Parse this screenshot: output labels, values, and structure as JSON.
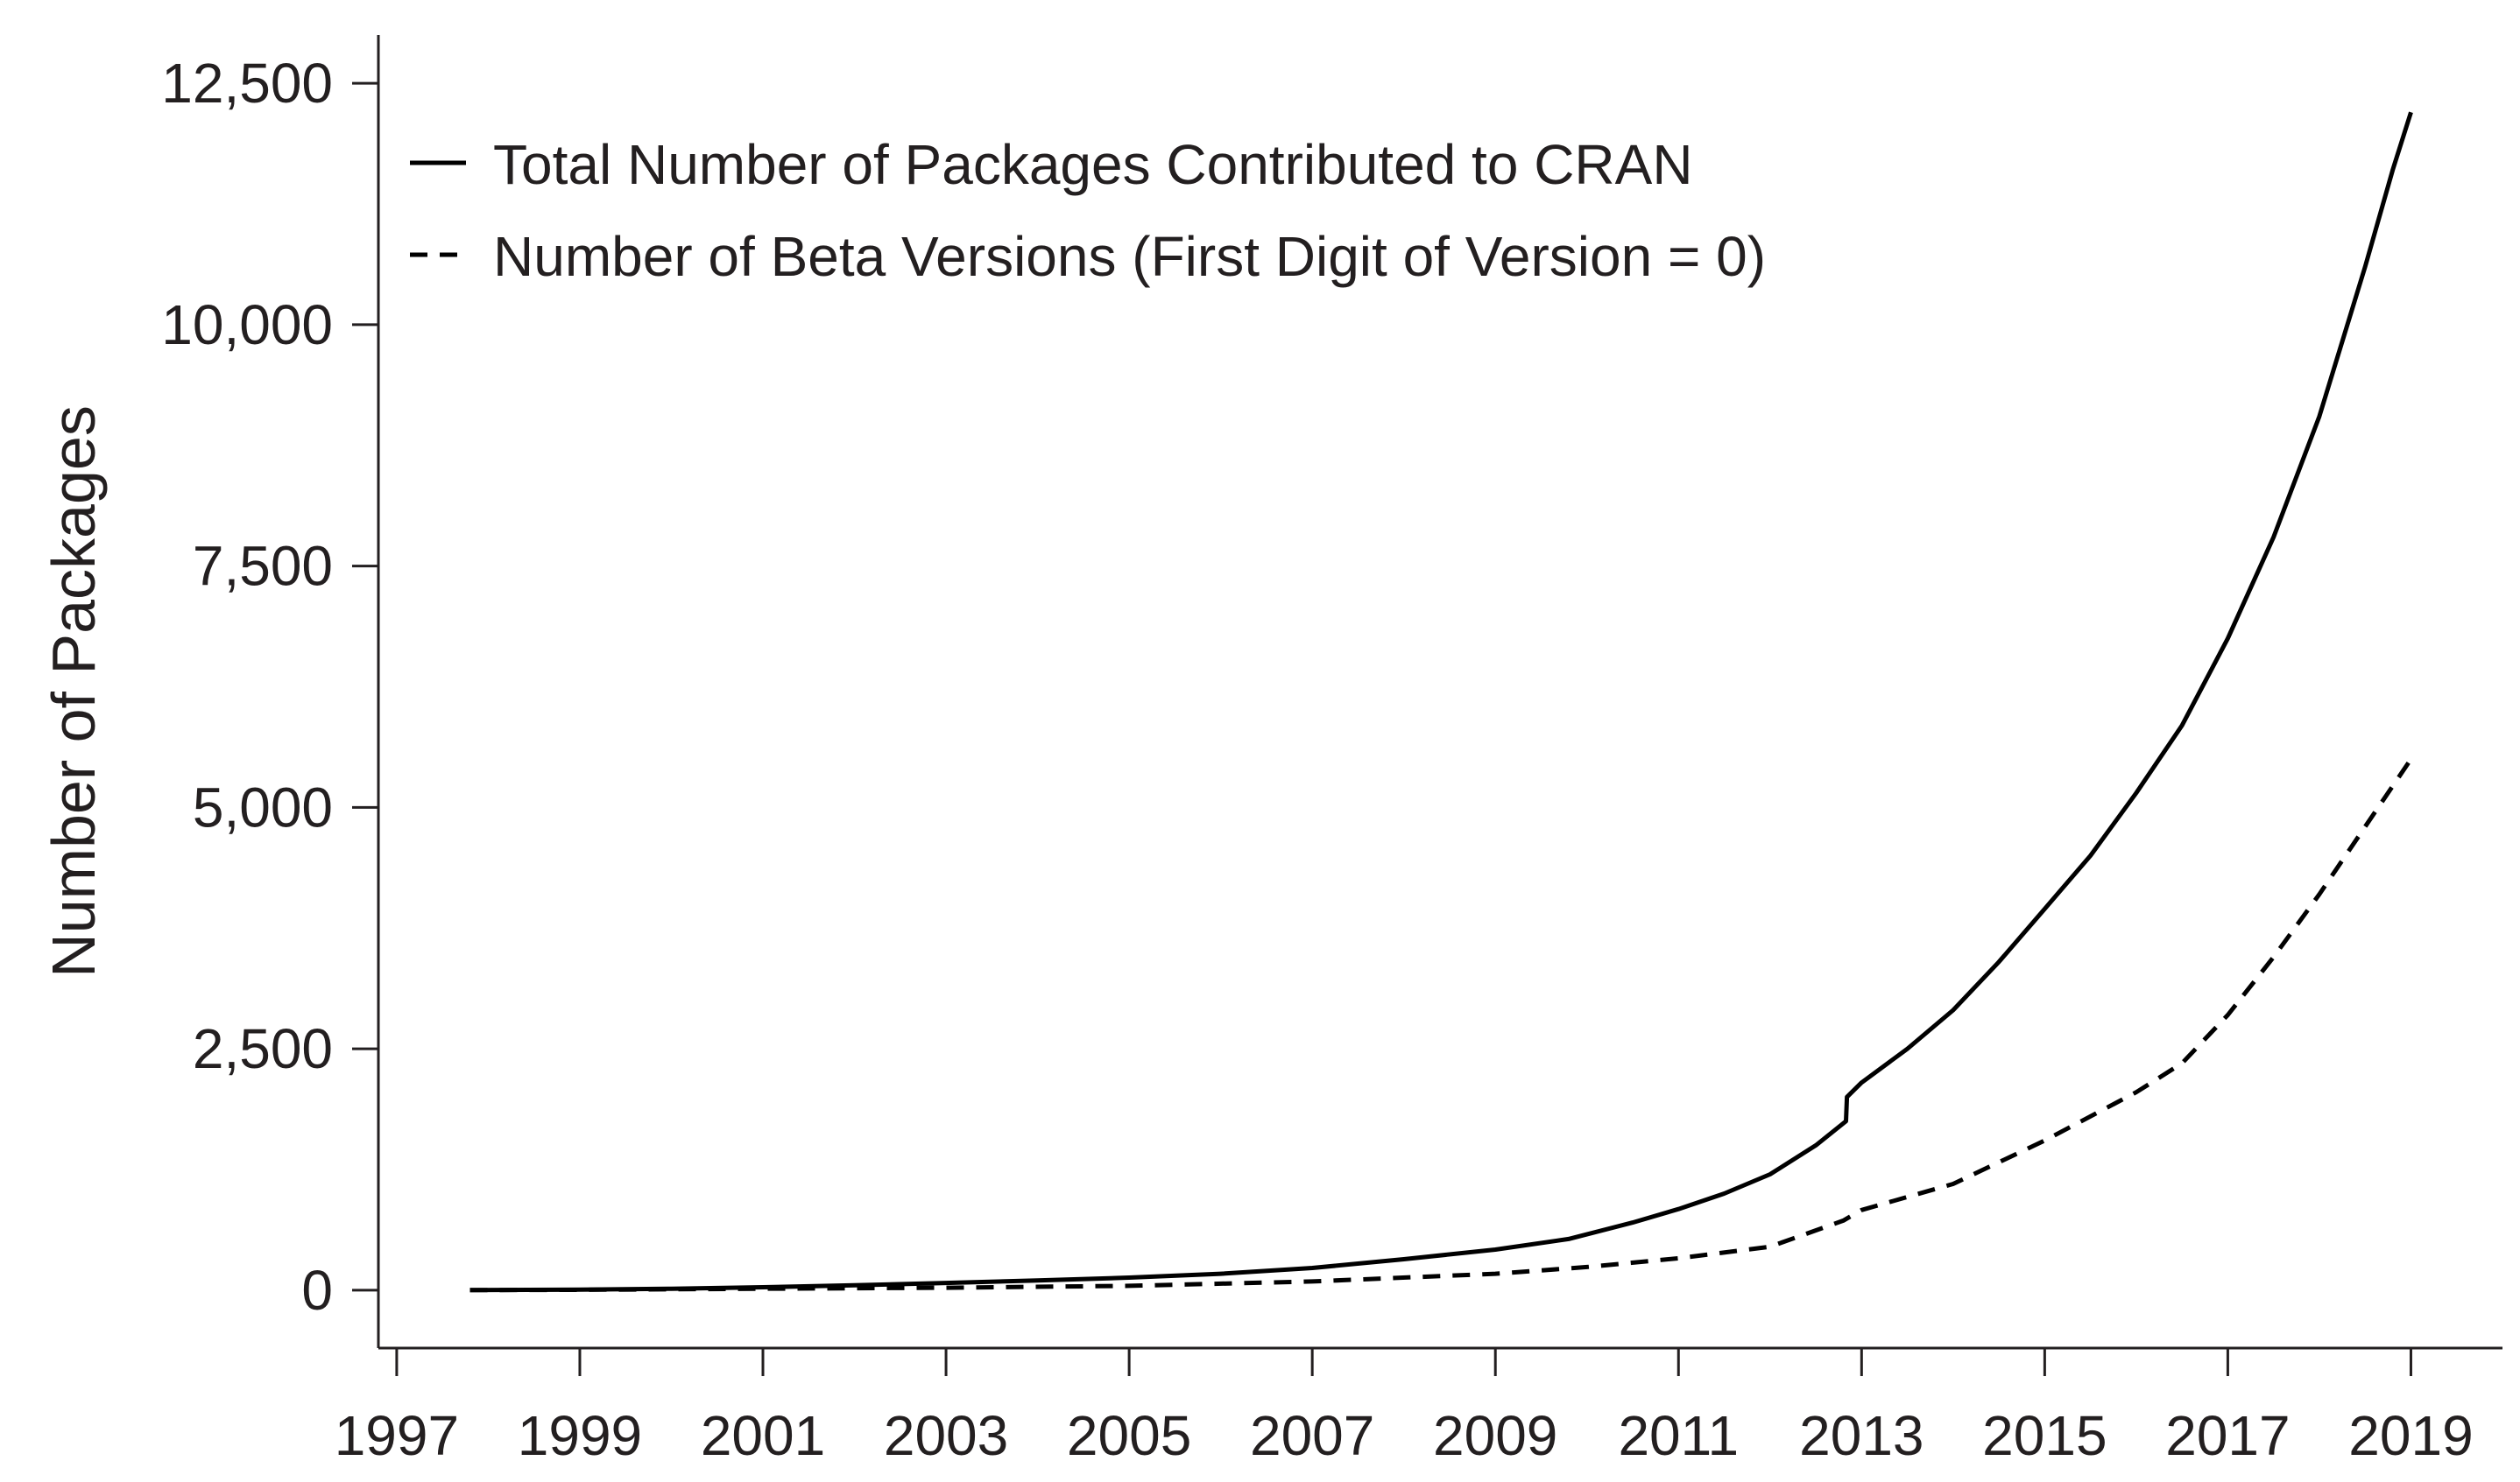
{
  "chart_data": {
    "type": "line",
    "title": "",
    "xlabel": "",
    "ylabel": "Number of Packages",
    "xlim": [
      1996.8,
      2020.0
    ],
    "ylim": [
      -600,
      13000
    ],
    "grid": false,
    "legend_position": "top-left",
    "x_ticks": [
      1997,
      1999,
      2001,
      2003,
      2005,
      2007,
      2009,
      2011,
      2013,
      2015,
      2017,
      2019
    ],
    "x_tick_labels": [
      "1997",
      "1999",
      "2001",
      "2003",
      "2005",
      "2007",
      "2009",
      "2011",
      "2013",
      "2015",
      "2017",
      "2019"
    ],
    "y_ticks": [
      0,
      2500,
      5000,
      7500,
      10000,
      12500
    ],
    "y_tick_labels": [
      "0",
      "2,500",
      "5,000",
      "7,500",
      "10,000",
      "12,500"
    ],
    "series": [
      {
        "name": "Total Number of Packages Contributed to CRAN",
        "style": "solid",
        "color": "#000000",
        "x": [
          1997.8,
          1999,
          2000,
          2001,
          2002,
          2003,
          2004,
          2005,
          2006,
          2007,
          2008,
          2009,
          2009.8,
          2010.5,
          2011,
          2011.5,
          2012,
          2012.5,
          2012.83,
          2012.84,
          2013,
          2013.5,
          2014,
          2014.5,
          2015,
          2015.5,
          2016,
          2016.5,
          2017,
          2017.5,
          2018,
          2018.5,
          2018.8,
          2019
        ],
        "y": [
          0,
          5,
          15,
          30,
          50,
          75,
          100,
          130,
          170,
          230,
          320,
          420,
          530,
          700,
          840,
          1000,
          1200,
          1500,
          1750,
          2000,
          2150,
          2500,
          2900,
          3400,
          3950,
          4500,
          5150,
          5850,
          6750,
          7800,
          9050,
          10600,
          11600,
          12200
        ]
      },
      {
        "name": "Number of Beta Versions (First Digit of Version = 0)",
        "style": "dashed",
        "color": "#000000",
        "x": [
          1997.8,
          1999,
          2001,
          2003,
          2005,
          2007,
          2009,
          2010,
          2011,
          2012,
          2012.8,
          2013,
          2014,
          2015,
          2016,
          2016.5,
          2017,
          2017.5,
          2018,
          2018.5,
          2019
        ],
        "y": [
          0,
          3,
          15,
          25,
          45,
          90,
          170,
          240,
          330,
          450,
          720,
          830,
          1100,
          1550,
          2050,
          2350,
          2850,
          3450,
          4100,
          4800,
          5500
        ]
      }
    ]
  }
}
